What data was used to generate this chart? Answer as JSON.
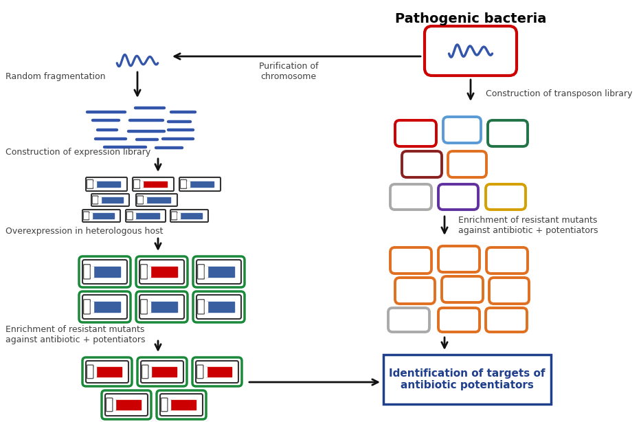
{
  "title": "Pathogenic bacteria",
  "title_fontsize": 14,
  "fig_bg": "#ffffff",
  "text_color": "#404040",
  "labels": {
    "purification": "Purification of\nchromosome",
    "random_frag": "Random fragmentation",
    "expression_lib": "Construction of expression library",
    "overexpression": "Overexpression in heterologous host",
    "enrichment_left": "Enrichment of resistant mutants\nagainst antibiotic + potentiators",
    "transposon_lib": "Construction of transposon library",
    "enrichment_right": "Enrichment of resistant mutants\nagainst antibiotic + potentiators",
    "identification": "Identification of targets of\nantibiotic potentiators"
  },
  "colors": {
    "red": "#cc0000",
    "dark_red": "#8b2020",
    "blue": "#3a5fa0",
    "light_blue": "#5b9bd5",
    "green": "#217346",
    "orange": "#e07020",
    "gray": "#aaaaaa",
    "purple": "#6030a0",
    "yellow": "#d4a000",
    "white": "#ffffff",
    "black": "#111111",
    "box_green": "#1a8a3a",
    "box_blue": "#1f3f8c",
    "dna_blue": "#3355aa"
  },
  "transposon_rects": [
    [
      575,
      175,
      60,
      38,
      "#cc0000"
    ],
    [
      645,
      170,
      55,
      38,
      "#5b9bd5"
    ],
    [
      710,
      175,
      58,
      38,
      "#217346"
    ],
    [
      585,
      220,
      58,
      38,
      "#8b2020"
    ],
    [
      652,
      220,
      56,
      38,
      "#e07020"
    ],
    [
      568,
      268,
      60,
      37,
      "#aaaaaa"
    ],
    [
      638,
      268,
      58,
      37,
      "#6030a0"
    ],
    [
      707,
      268,
      58,
      37,
      "#d4a000"
    ]
  ],
  "orange_rects": [
    [
      568,
      360,
      60,
      38,
      "#e07020"
    ],
    [
      638,
      358,
      60,
      38,
      "#e07020"
    ],
    [
      708,
      360,
      60,
      38,
      "#e07020"
    ],
    [
      575,
      404,
      58,
      38,
      "#e07020"
    ],
    [
      643,
      402,
      60,
      38,
      "#e07020"
    ],
    [
      712,
      404,
      58,
      38,
      "#e07020"
    ],
    [
      565,
      448,
      60,
      35,
      "#aaaaaa"
    ],
    [
      638,
      448,
      60,
      35,
      "#e07020"
    ],
    [
      707,
      448,
      60,
      35,
      "#e07020"
    ]
  ]
}
